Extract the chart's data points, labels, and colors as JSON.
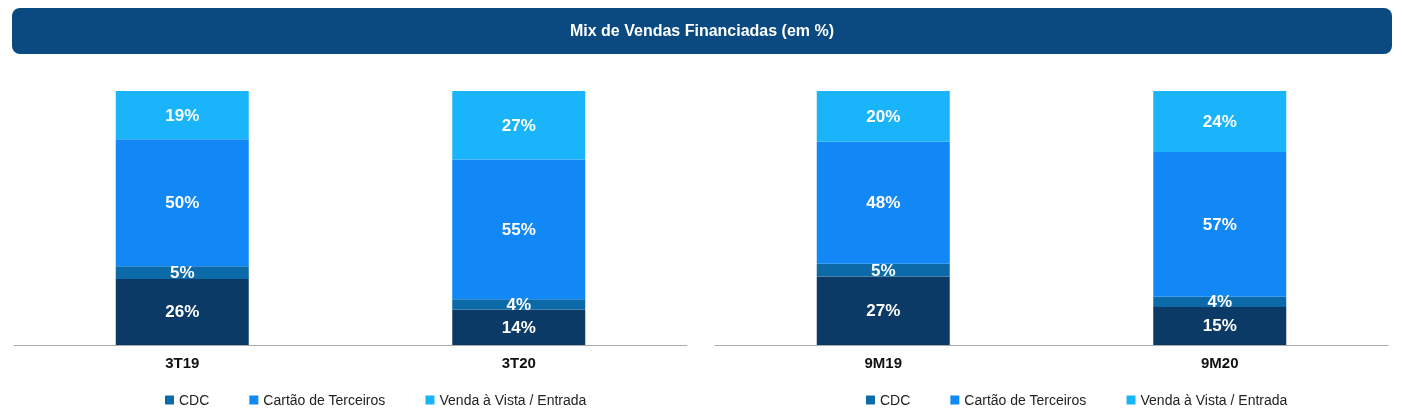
{
  "chart_data": [
    {
      "type": "bar",
      "title": "Mix de Vendas Financiadas (em %)",
      "categories": [
        "3T19",
        "3T20"
      ],
      "stacked": true,
      "legend": "bottom left",
      "series": [
        {
          "color": "#0b3a66",
          "values": [
            26,
            14
          ],
          "value_labels": [
            "26%",
            "14%"
          ]
        },
        {
          "name": "CDC",
          "color": "#0c6aa8",
          "values": [
            5,
            4
          ],
          "value_labels": [
            "5%",
            "4%"
          ]
        },
        {
          "name": "Cartão de Terceiros",
          "color": "#1188f5",
          "values": [
            50,
            55
          ],
          "value_labels": [
            "50%",
            "55%"
          ]
        },
        {
          "name": "Venda à Vista / Entrada",
          "color": "#1ab4fb",
          "values": [
            19,
            27
          ],
          "value_labels": [
            "19%",
            "27%"
          ]
        }
      ],
      "tick_labels": "x"
    },
    {
      "type": "bar",
      "categories": [
        "9M19",
        "9M20"
      ],
      "stacked": true,
      "legend": "bottom left",
      "series": [
        {
          "color": "#0b3a66",
          "values": [
            27,
            15
          ],
          "value_labels": [
            "27%",
            "15%"
          ]
        },
        {
          "name": "CDC",
          "color": "#0c6aa8",
          "values": [
            5,
            4
          ],
          "value_labels": [
            "5%",
            "4%"
          ]
        },
        {
          "name": "Cartão de Terceiros",
          "color": "#1188f5",
          "values": [
            48,
            57
          ],
          "value_labels": [
            "48%",
            "57%"
          ]
        },
        {
          "name": "Venda à Vista / Entrada",
          "color": "#1ab4fb",
          "values": [
            20,
            24
          ],
          "value_labels": [
            "20%",
            "24%"
          ]
        }
      ],
      "tick_labels": "x"
    }
  ]
}
